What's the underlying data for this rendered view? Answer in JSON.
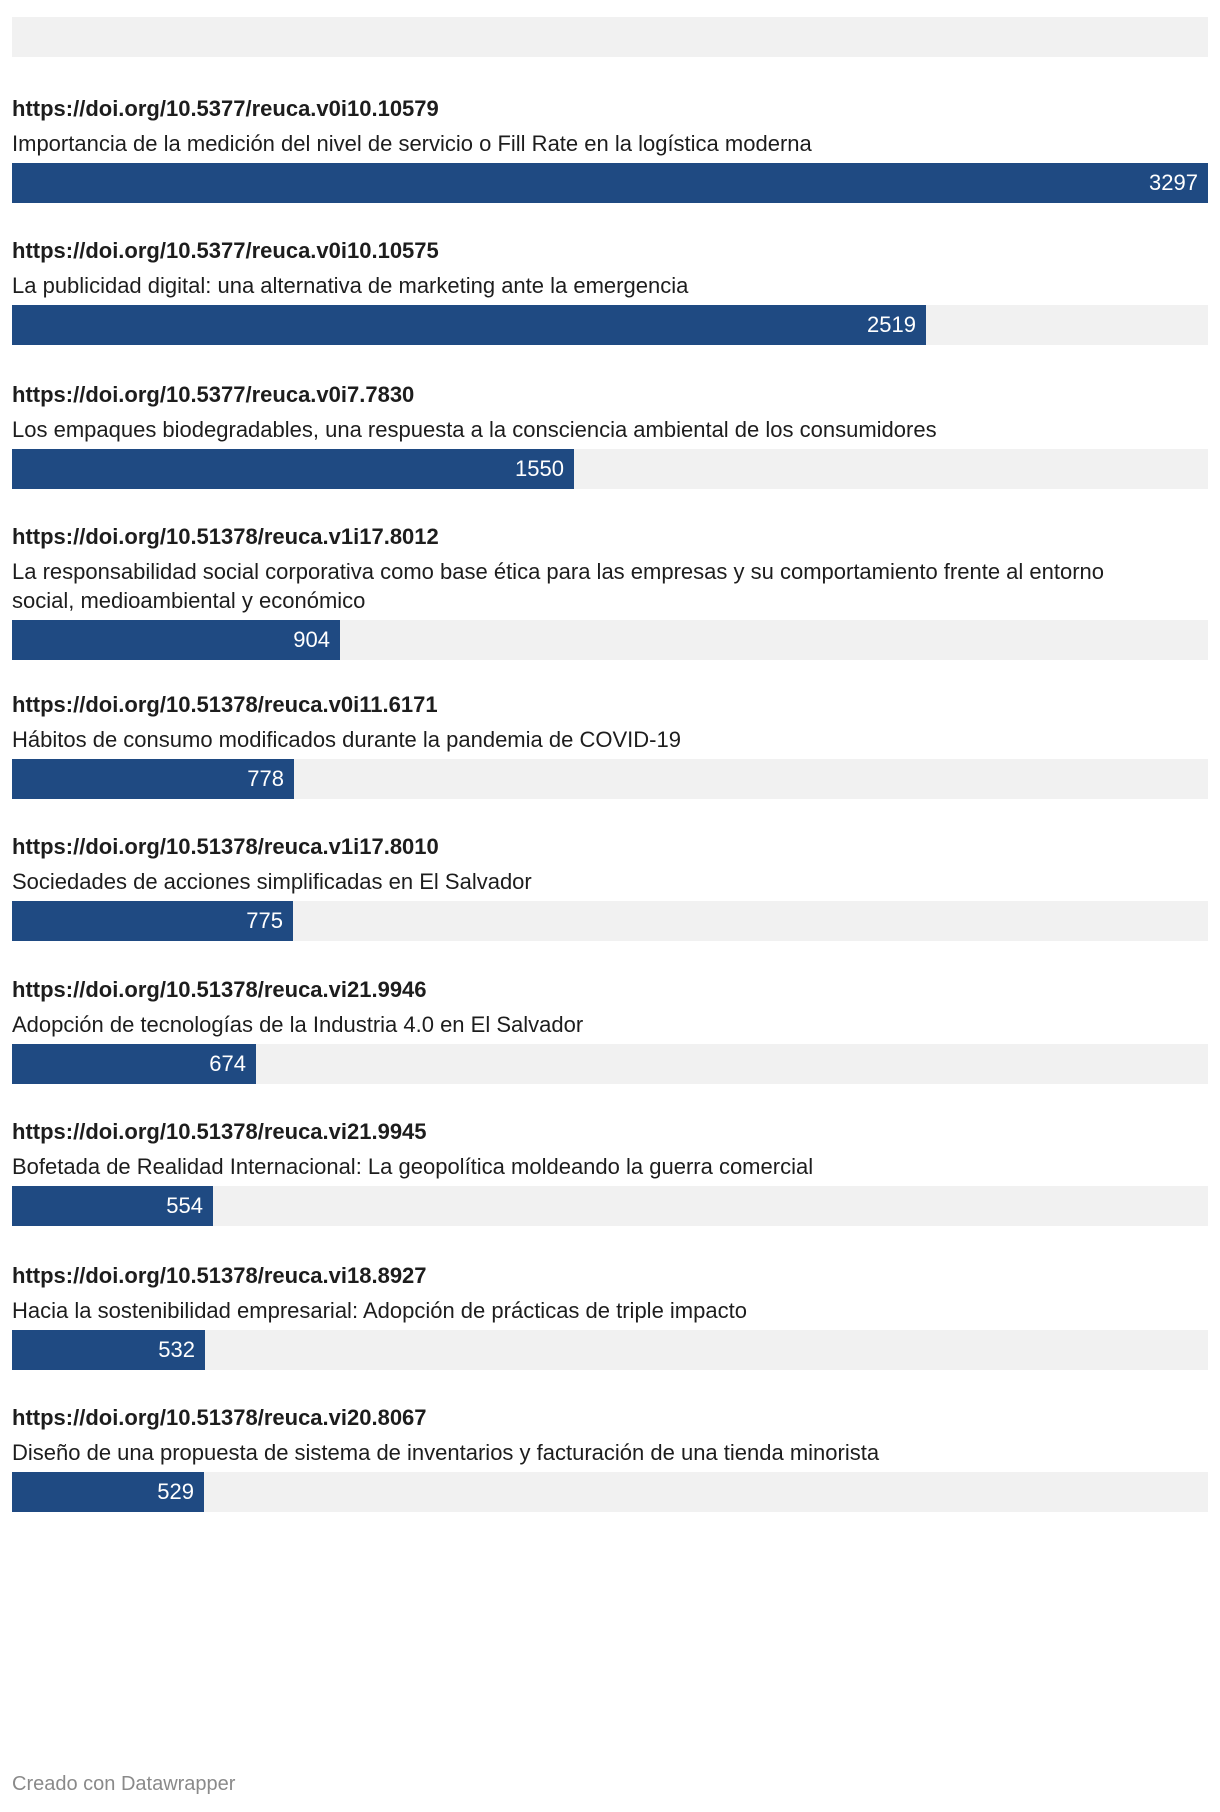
{
  "chart_data": {
    "type": "bar",
    "orientation": "horizontal",
    "max_value": 3297,
    "bar_color": "#1f4a82",
    "track_color": "#f1f1f1",
    "items": [
      {
        "doi": "https://doi.org/10.5377/reuca.v0i10.10579",
        "title": "Importancia de la medición del nivel de servicio o Fill Rate en la logística moderna",
        "value": 3297
      },
      {
        "doi": "https://doi.org/10.5377/reuca.v0i10.10575",
        "title": "La publicidad digital: una alternativa de marketing ante la emergencia",
        "value": 2519
      },
      {
        "doi": "https://doi.org/10.5377/reuca.v0i7.7830",
        "title": "Los empaques biodegradables, una respuesta a la consciencia ambiental de los consumidores",
        "value": 1550
      },
      {
        "doi": "https://doi.org/10.51378/reuca.v1i17.8012",
        "title": "La responsabilidad social corporativa como base ética para las empresas y su comportamiento frente al entorno social, medioambiental y económico",
        "value": 904
      },
      {
        "doi": "https://doi.org/10.51378/reuca.v0i11.6171",
        "title": "Hábitos de consumo modificados durante la pandemia de COVID-19",
        "value": 778
      },
      {
        "doi": "https://doi.org/10.51378/reuca.v1i17.8010",
        "title": "Sociedades de acciones simplificadas en El Salvador",
        "value": 775
      },
      {
        "doi": "https://doi.org/10.51378/reuca.vi21.9946",
        "title": "Adopción de tecnologías de la Industria 4.0 en El Salvador",
        "value": 674
      },
      {
        "doi": "https://doi.org/10.51378/reuca.vi21.9945",
        "title": "Bofetada de Realidad Internacional: La geopolítica moldeando la guerra comercial",
        "value": 554
      },
      {
        "doi": "https://doi.org/10.51378/reuca.vi18.8927",
        "title": "Hacia la sostenibilidad empresarial: Adopción de prácticas de triple impacto",
        "value": 532
      },
      {
        "doi": "https://doi.org/10.51378/reuca.vi20.8067",
        "title": "Diseño de una propuesta de sistema de inventarios y facturación de una tienda minorista",
        "value": 529
      }
    ]
  },
  "footer": {
    "credit": "Creado con Datawrapper"
  }
}
